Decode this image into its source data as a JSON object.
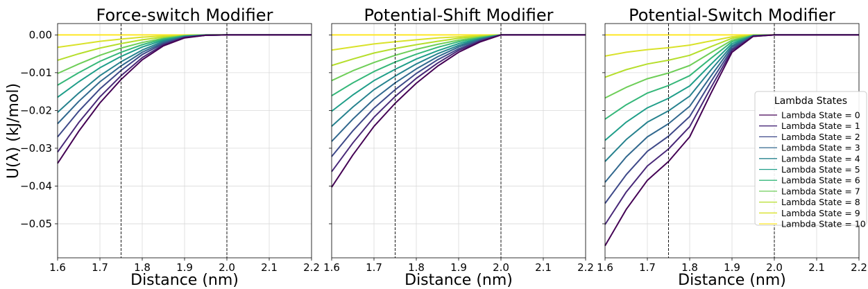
{
  "figure": {
    "ylabel": "U(λ) (kJ/mol)",
    "legend_title": "Lambda States"
  },
  "chart_data": [
    {
      "type": "line",
      "title": "Force-switch Modifier",
      "xlabel": "Distance (nm)",
      "ylabel": "U(λ) (kJ/mol)",
      "xlim": [
        1.6,
        2.2
      ],
      "ylim": [
        -0.059,
        0.003
      ],
      "xticks": [
        "1.6",
        "1.7",
        "1.8",
        "1.9",
        "2.0",
        "2.1",
        "2.2"
      ],
      "yticks": [
        "0.00",
        "−0.01",
        "−0.02",
        "−0.03",
        "−0.04",
        "−0.05"
      ],
      "show_ytick_labels": true,
      "vlines": [
        1.75,
        2.0
      ],
      "grid": true,
      "x": [
        1.6,
        1.65,
        1.7,
        1.75,
        1.8,
        1.85,
        1.9,
        1.95,
        2.0,
        2.2
      ],
      "series": [
        {
          "name": "Lambda State = 0",
          "values": [
            -0.034,
            -0.0255,
            -0.018,
            -0.0118,
            -0.0066,
            -0.0029,
            -0.0008,
            -0.0001,
            0,
            0
          ]
        },
        {
          "name": "Lambda State = 1",
          "values": [
            -0.031,
            -0.0232,
            -0.0164,
            -0.0108,
            -0.006,
            -0.0026,
            -0.0007,
            -0.0001,
            0,
            0
          ]
        },
        {
          "name": "Lambda State = 2",
          "values": [
            -0.027,
            -0.0202,
            -0.0143,
            -0.0094,
            -0.0052,
            -0.0023,
            -0.0006,
            -0.0001,
            0,
            0
          ]
        },
        {
          "name": "Lambda State = 3",
          "values": [
            -0.0235,
            -0.0176,
            -0.0124,
            -0.0082,
            -0.0046,
            -0.002,
            -0.0005,
            -0.0001,
            0,
            0
          ]
        },
        {
          "name": "Lambda State = 4",
          "values": [
            -0.0205,
            -0.0154,
            -0.0108,
            -0.0071,
            -0.004,
            -0.0017,
            -0.0005,
            -0.0001,
            0,
            0
          ]
        },
        {
          "name": "Lambda State = 5",
          "values": [
            -0.0165,
            -0.0124,
            -0.0087,
            -0.0057,
            -0.0032,
            -0.0014,
            -0.0004,
            0,
            0,
            0
          ]
        },
        {
          "name": "Lambda State = 6",
          "values": [
            -0.0133,
            -0.01,
            -0.007,
            -0.0046,
            -0.0026,
            -0.0011,
            -0.0003,
            0,
            0,
            0
          ]
        },
        {
          "name": "Lambda State = 7",
          "values": [
            -0.0102,
            -0.0077,
            -0.0054,
            -0.0035,
            -0.002,
            -0.0009,
            -0.0002,
            0,
            0,
            0
          ]
        },
        {
          "name": "Lambda State = 8",
          "values": [
            -0.0067,
            -0.005,
            -0.0035,
            -0.0023,
            -0.0013,
            -0.0006,
            -0.0002,
            0,
            0,
            0
          ]
        },
        {
          "name": "Lambda State = 9",
          "values": [
            -0.0033,
            -0.0025,
            -0.0017,
            -0.0011,
            -0.0006,
            -0.0003,
            -0.0001,
            0,
            0,
            0
          ]
        },
        {
          "name": "Lambda State = 10",
          "values": [
            0,
            0,
            0,
            0,
            0,
            0,
            0,
            0,
            0,
            0
          ]
        }
      ]
    },
    {
      "type": "line",
      "title": "Potential-Shift Modifier",
      "xlabel": "Distance (nm)",
      "ylabel": "",
      "xlim": [
        1.6,
        2.2
      ],
      "ylim": [
        -0.059,
        0.003
      ],
      "xticks": [
        "1.6",
        "1.7",
        "1.8",
        "1.9",
        "2.0",
        "2.1",
        "2.2"
      ],
      "yticks": [],
      "show_ytick_labels": false,
      "vlines": [
        1.75,
        2.0
      ],
      "grid": true,
      "x": [
        1.6,
        1.65,
        1.7,
        1.75,
        1.8,
        1.85,
        1.9,
        1.95,
        2.0,
        2.2
      ],
      "series": [
        {
          "name": "Lambda State = 0",
          "values": [
            -0.0403,
            -0.0318,
            -0.0242,
            -0.0181,
            -0.0128,
            -0.0083,
            -0.0046,
            -0.0019,
            0,
            0
          ]
        },
        {
          "name": "Lambda State = 1",
          "values": [
            -0.0362,
            -0.0286,
            -0.0218,
            -0.0163,
            -0.0115,
            -0.0075,
            -0.0041,
            -0.0017,
            0,
            0
          ]
        },
        {
          "name": "Lambda State = 2",
          "values": [
            -0.0322,
            -0.0254,
            -0.0194,
            -0.0145,
            -0.0102,
            -0.0066,
            -0.0037,
            -0.0015,
            0,
            0
          ]
        },
        {
          "name": "Lambda State = 3",
          "values": [
            -0.0282,
            -0.0223,
            -0.017,
            -0.0127,
            -0.009,
            -0.0058,
            -0.0032,
            -0.0013,
            0,
            0
          ]
        },
        {
          "name": "Lambda State = 4",
          "values": [
            -0.0242,
            -0.0191,
            -0.0145,
            -0.0109,
            -0.0077,
            -0.005,
            -0.0028,
            -0.0011,
            0,
            0
          ]
        },
        {
          "name": "Lambda State = 5",
          "values": [
            -0.0202,
            -0.0159,
            -0.0121,
            -0.0091,
            -0.0064,
            -0.0042,
            -0.0023,
            -0.001,
            0,
            0
          ]
        },
        {
          "name": "Lambda State = 6",
          "values": [
            -0.0161,
            -0.0127,
            -0.0097,
            -0.0072,
            -0.0051,
            -0.0033,
            -0.0018,
            -0.0008,
            0,
            0
          ]
        },
        {
          "name": "Lambda State = 7",
          "values": [
            -0.0121,
            -0.0095,
            -0.0073,
            -0.0054,
            -0.0038,
            -0.0025,
            -0.0014,
            -0.0006,
            0,
            0
          ]
        },
        {
          "name": "Lambda State = 8",
          "values": [
            -0.0081,
            -0.0064,
            -0.0048,
            -0.0036,
            -0.0026,
            -0.0017,
            -0.0009,
            -0.0004,
            0,
            0
          ]
        },
        {
          "name": "Lambda State = 9",
          "values": [
            -0.004,
            -0.0032,
            -0.0024,
            -0.0018,
            -0.0013,
            -0.0008,
            -0.0005,
            -0.0002,
            0,
            0
          ]
        },
        {
          "name": "Lambda State = 10",
          "values": [
            0,
            0,
            0,
            0,
            0,
            0,
            0,
            0,
            0,
            0
          ]
        }
      ]
    },
    {
      "type": "line",
      "title": "Potential-Switch Modifier",
      "xlabel": "Distance (nm)",
      "ylabel": "",
      "xlim": [
        1.6,
        2.2
      ],
      "ylim": [
        -0.059,
        0.003
      ],
      "xticks": [
        "1.6",
        "1.7",
        "1.8",
        "1.9",
        "2.0",
        "2.1",
        "2.2"
      ],
      "yticks": [],
      "show_ytick_labels": false,
      "vlines": [
        1.75,
        2.0
      ],
      "grid": true,
      "legend": "right",
      "x": [
        1.6,
        1.65,
        1.7,
        1.75,
        1.8,
        1.85,
        1.9,
        1.95,
        2.0,
        2.2
      ],
      "series": [
        {
          "name": "Lambda State = 0",
          "values": [
            -0.0558,
            -0.0462,
            -0.0385,
            -0.0335,
            -0.027,
            -0.0155,
            -0.0046,
            -0.0004,
            0,
            0
          ]
        },
        {
          "name": "Lambda State = 1",
          "values": [
            -0.0502,
            -0.0416,
            -0.0347,
            -0.0302,
            -0.0243,
            -0.014,
            -0.0041,
            -0.0004,
            0,
            0
          ]
        },
        {
          "name": "Lambda State = 2",
          "values": [
            -0.0446,
            -0.037,
            -0.0308,
            -0.0268,
            -0.0216,
            -0.0124,
            -0.0037,
            -0.0003,
            0,
            0
          ]
        },
        {
          "name": "Lambda State = 3",
          "values": [
            -0.039,
            -0.0323,
            -0.027,
            -0.0235,
            -0.0189,
            -0.0109,
            -0.0032,
            -0.0003,
            0,
            0
          ]
        },
        {
          "name": "Lambda State = 4",
          "values": [
            -0.0335,
            -0.0277,
            -0.0231,
            -0.0201,
            -0.0162,
            -0.0093,
            -0.0028,
            -0.0002,
            0,
            0
          ]
        },
        {
          "name": "Lambda State = 5",
          "values": [
            -0.0279,
            -0.0231,
            -0.0193,
            -0.0168,
            -0.0135,
            -0.0078,
            -0.0023,
            -0.0002,
            0,
            0
          ]
        },
        {
          "name": "Lambda State = 6",
          "values": [
            -0.0223,
            -0.0185,
            -0.0154,
            -0.0134,
            -0.0108,
            -0.0062,
            -0.0018,
            -0.0002,
            0,
            0
          ]
        },
        {
          "name": "Lambda State = 7",
          "values": [
            -0.0167,
            -0.0139,
            -0.0116,
            -0.0101,
            -0.0081,
            -0.0047,
            -0.0014,
            -0.0001,
            0,
            0
          ]
        },
        {
          "name": "Lambda State = 8",
          "values": [
            -0.0112,
            -0.0092,
            -0.0077,
            -0.0067,
            -0.0054,
            -0.0031,
            -0.0009,
            -0.0001,
            0,
            0
          ]
        },
        {
          "name": "Lambda State = 9",
          "values": [
            -0.0056,
            -0.0046,
            -0.0039,
            -0.0034,
            -0.0027,
            -0.0016,
            -0.0005,
            0,
            0,
            0
          ]
        },
        {
          "name": "Lambda State = 10",
          "values": [
            0,
            0,
            0,
            0,
            0,
            0,
            0,
            0,
            0,
            0
          ]
        }
      ]
    }
  ],
  "colors": [
    "#440154",
    "#482878",
    "#3e4989",
    "#31688e",
    "#26828e",
    "#1f9e89",
    "#35b779",
    "#6ece58",
    "#b5de2b",
    "#d9e22a",
    "#fde725"
  ]
}
